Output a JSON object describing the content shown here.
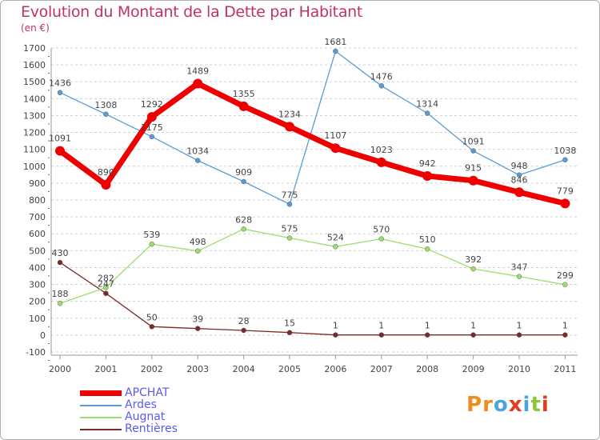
{
  "header": {
    "title": "Evolution du Montant de la Dette par Habitant",
    "subtitle": "(en €)"
  },
  "logo": {
    "text": "Proxiti",
    "colors": [
      "#f08c1e",
      "#f08c1e",
      "#4ca3dd",
      "#e23b1e",
      "#4ca3dd",
      "#8bc63f",
      "#e23b1e"
    ]
  },
  "colors": {
    "title": "#c0306b",
    "legend_text": "#5a5af0",
    "grid": "#d0d0d0",
    "axis_text": "#444444"
  },
  "chart_data": {
    "type": "line",
    "title": "Evolution du Montant de la Dette par Habitant",
    "subtitle": "(en €)",
    "xlabel": "",
    "ylabel": "",
    "categories": [
      "2000",
      "2001",
      "2002",
      "2003",
      "2004",
      "2005",
      "2006",
      "2007",
      "2008",
      "2009",
      "2010",
      "2011"
    ],
    "ylim": [
      -100,
      1700
    ],
    "yticks": [
      -100,
      0,
      100,
      200,
      300,
      400,
      500,
      600,
      700,
      800,
      900,
      1000,
      1100,
      1200,
      1300,
      1400,
      1500,
      1600,
      1700
    ],
    "grid": "horizontal dashed",
    "legend_position": "bottom-left",
    "series": [
      {
        "name": "APCHAT",
        "color": "#ee0000",
        "values": [
          1091,
          890,
          1292,
          1489,
          1355,
          1234,
          1107,
          1023,
          942,
          915,
          846,
          779
        ],
        "labels": [
          "1091",
          "890",
          "1292",
          "1489",
          "1355",
          "1234",
          "1107",
          "1023",
          "942",
          "915",
          "846",
          "779"
        ]
      },
      {
        "name": "Ardes",
        "color": "#5b9bd5",
        "values": [
          1436,
          1308,
          1175,
          1034,
          909,
          775,
          1681,
          1476,
          1314,
          1091,
          948,
          1038
        ],
        "labels": [
          "1436",
          "1308",
          "1175",
          "1034",
          "909",
          "775",
          "1681",
          "1476",
          "1314",
          "1091",
          "948",
          "1038"
        ]
      },
      {
        "name": "Augnat",
        "color": "#9bde6e",
        "values": [
          188,
          282,
          539,
          498,
          628,
          575,
          524,
          570,
          510,
          392,
          347,
          299
        ],
        "labels": [
          "188",
          "282",
          "539",
          "498",
          "628",
          "575",
          "524",
          "570",
          "510",
          "392",
          "347",
          "299"
        ]
      },
      {
        "name": "Rentières",
        "color": "#7a2a2a",
        "values": [
          430,
          247,
          50,
          39,
          28,
          15,
          1,
          1,
          1,
          1,
          1,
          1
        ],
        "labels": [
          "430",
          "247",
          "50",
          "39",
          "28",
          "15",
          "1",
          "1",
          "1",
          "1",
          "1",
          "1"
        ]
      }
    ]
  }
}
